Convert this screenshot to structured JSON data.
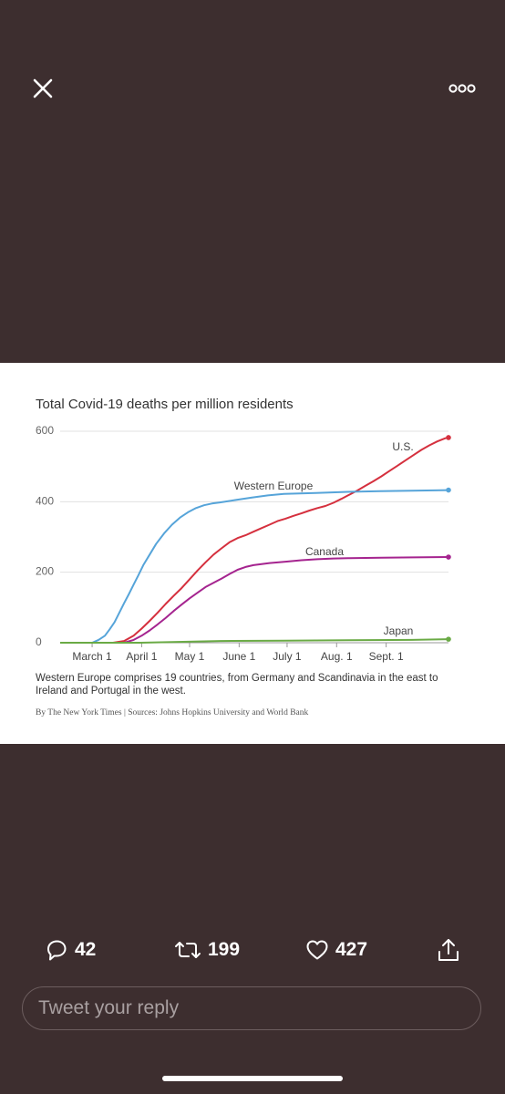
{
  "toolbar": {
    "close_icon": "close-icon",
    "more_icon": "more-options-icon"
  },
  "chart_data": {
    "type": "line",
    "title": "Total Covid-19 deaths per million residents",
    "x_ticks": [
      "March 1",
      "April 1",
      "May 1",
      "June 1",
      "July 1",
      "Aug. 1",
      "Sept. 1"
    ],
    "y_ticks": [
      "600",
      "400",
      "200",
      "0"
    ],
    "ylim": [
      0,
      600
    ],
    "grid": true,
    "series": [
      {
        "name": "U.S.",
        "color": "#d5303e",
        "points": [
          [
            -20,
            0
          ],
          [
            13,
            0
          ],
          [
            20,
            5
          ],
          [
            26,
            20
          ],
          [
            31,
            40
          ],
          [
            36,
            62
          ],
          [
            41,
            85
          ],
          [
            46,
            110
          ],
          [
            51,
            133
          ],
          [
            56,
            155
          ],
          [
            61,
            180
          ],
          [
            66,
            205
          ],
          [
            71,
            228
          ],
          [
            76,
            250
          ],
          [
            81,
            268
          ],
          [
            86,
            285
          ],
          [
            91,
            297
          ],
          [
            96,
            305
          ],
          [
            101,
            315
          ],
          [
            106,
            325
          ],
          [
            111,
            335
          ],
          [
            116,
            345
          ],
          [
            121,
            352
          ],
          [
            126,
            360
          ],
          [
            131,
            367
          ],
          [
            136,
            375
          ],
          [
            141,
            382
          ],
          [
            146,
            388
          ],
          [
            151,
            397
          ],
          [
            156,
            408
          ],
          [
            161,
            420
          ],
          [
            166,
            432
          ],
          [
            171,
            445
          ],
          [
            176,
            458
          ],
          [
            181,
            472
          ],
          [
            186,
            487
          ],
          [
            191,
            502
          ],
          [
            196,
            517
          ],
          [
            201,
            532
          ],
          [
            206,
            547
          ],
          [
            211,
            560
          ],
          [
            216,
            571
          ],
          [
            221,
            580
          ],
          [
            223,
            582
          ]
        ]
      },
      {
        "name": "Western Europe",
        "color": "#56a4d9",
        "points": [
          [
            -20,
            0
          ],
          [
            0,
            0
          ],
          [
            4,
            8
          ],
          [
            8,
            20
          ],
          [
            11,
            38
          ],
          [
            14,
            58
          ],
          [
            17,
            85
          ],
          [
            20,
            112
          ],
          [
            23,
            138
          ],
          [
            26,
            165
          ],
          [
            29,
            192
          ],
          [
            32,
            220
          ],
          [
            36,
            250
          ],
          [
            40,
            280
          ],
          [
            45,
            310
          ],
          [
            50,
            335
          ],
          [
            55,
            355
          ],
          [
            60,
            370
          ],
          [
            65,
            382
          ],
          [
            70,
            390
          ],
          [
            75,
            395
          ],
          [
            80,
            398
          ],
          [
            90,
            405
          ],
          [
            100,
            412
          ],
          [
            110,
            418
          ],
          [
            120,
            422
          ],
          [
            140,
            425
          ],
          [
            160,
            428
          ],
          [
            180,
            430
          ],
          [
            200,
            431
          ],
          [
            223,
            433
          ]
        ]
      },
      {
        "name": "Canada",
        "color": "#a5248f",
        "points": [
          [
            -20,
            0
          ],
          [
            20,
            0
          ],
          [
            26,
            8
          ],
          [
            31,
            20
          ],
          [
            36,
            35
          ],
          [
            41,
            52
          ],
          [
            46,
            70
          ],
          [
            51,
            90
          ],
          [
            56,
            108
          ],
          [
            61,
            126
          ],
          [
            66,
            142
          ],
          [
            71,
            158
          ],
          [
            76,
            170
          ],
          [
            81,
            182
          ],
          [
            86,
            195
          ],
          [
            91,
            207
          ],
          [
            96,
            215
          ],
          [
            101,
            220
          ],
          [
            111,
            226
          ],
          [
            121,
            230
          ],
          [
            131,
            234
          ],
          [
            141,
            237
          ],
          [
            151,
            239
          ],
          [
            161,
            240
          ],
          [
            181,
            241
          ],
          [
            201,
            242
          ],
          [
            223,
            243
          ]
        ]
      },
      {
        "name": "Japan",
        "color": "#6aaa45",
        "points": [
          [
            -20,
            0
          ],
          [
            30,
            0
          ],
          [
            50,
            2
          ],
          [
            80,
            5
          ],
          [
            120,
            6
          ],
          [
            160,
            7
          ],
          [
            200,
            8
          ],
          [
            223,
            10
          ]
        ]
      }
    ]
  },
  "footnote": "Western Europe comprises 19 countries, from Germany and Scandinavia in the east to Ireland and Portugal in the west.",
  "credit": "By The New York Times | Sources: Johns Hopkins University and World Bank",
  "actions": {
    "replies": "42",
    "retweets": "199",
    "likes": "427"
  },
  "reply_box": {
    "placeholder": "Tweet your reply"
  }
}
